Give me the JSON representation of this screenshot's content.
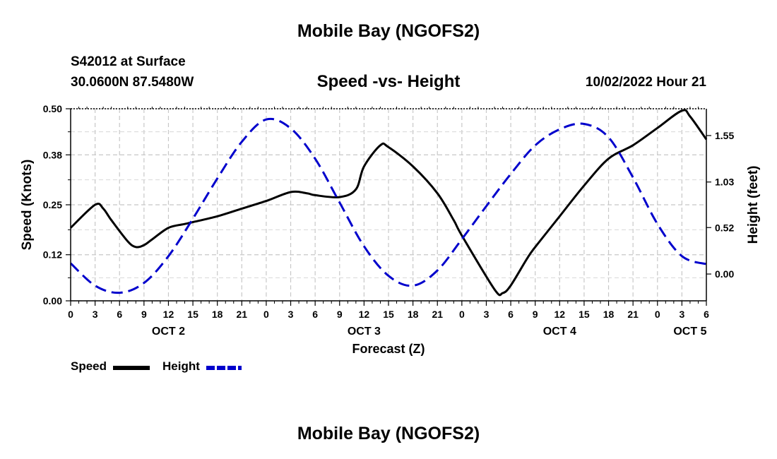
{
  "header": {
    "title": "Mobile Bay (NGOFS2)",
    "station": "S42012 at Surface",
    "coords": "30.0600N  87.5480W",
    "subtitle": "Speed -vs- Height",
    "datetime": "10/02/2022 Hour 21",
    "footer_title": "Mobile Bay (NGOFS2)"
  },
  "legend": {
    "speed_label": "Speed",
    "height_label": "Height",
    "speed_color": "#000000",
    "height_color": "#0000cc"
  },
  "chart_data": {
    "type": "line",
    "title": "Speed -vs- Height",
    "xlabel": "Forecast (Z)",
    "ylabel": "Speed (Knots)",
    "y2label": "Height (feet)",
    "x_unit": "hours from OCT 2 00Z",
    "xlim": [
      0,
      78
    ],
    "ylim": [
      0,
      0.5
    ],
    "y2lim": [
      -0.3,
      1.85
    ],
    "x_ticks": [
      0,
      3,
      6,
      9,
      12,
      15,
      18,
      21,
      24,
      27,
      30,
      33,
      36,
      39,
      42,
      45,
      48,
      51,
      54,
      57,
      60,
      63,
      66,
      69,
      72,
      75,
      78
    ],
    "x_tick_labels": [
      "0",
      "3",
      "6",
      "9",
      "12",
      "15",
      "18",
      "21",
      "0",
      "3",
      "6",
      "9",
      "12",
      "15",
      "18",
      "21",
      "0",
      "3",
      "6",
      "9",
      "12",
      "15",
      "18",
      "21",
      "0",
      "3",
      "6"
    ],
    "day_labels": [
      {
        "x": 12,
        "label": "OCT 2"
      },
      {
        "x": 36,
        "label": "OCT 3"
      },
      {
        "x": 60,
        "label": "OCT 4"
      },
      {
        "x": 76,
        "label": "OCT 5"
      }
    ],
    "y_ticks": [
      0.0,
      0.12,
      0.25,
      0.38,
      0.5
    ],
    "y_tick_labels": [
      "0.00",
      "0.12",
      "0.25",
      "0.38",
      "0.50"
    ],
    "y2_ticks": [
      0.0,
      0.52,
      1.03,
      1.55
    ],
    "y2_tick_labels": [
      "0.00",
      "0.52",
      "1.03",
      "1.55"
    ],
    "grid": true,
    "legend_position": "bottom-left",
    "series": [
      {
        "name": "Speed",
        "axis": "left",
        "color": "#000000",
        "dash": "solid",
        "x": [
          0,
          3,
          4,
          5,
          7,
          8,
          9,
          10,
          12,
          14,
          15,
          18,
          21,
          24,
          27,
          29,
          30,
          33,
          35,
          36,
          38,
          39,
          42,
          45,
          47,
          48,
          52,
          53,
          54,
          56,
          57,
          60,
          63,
          66,
          69,
          72,
          75,
          76,
          78
        ],
        "y": [
          0.19,
          0.25,
          0.24,
          0.21,
          0.155,
          0.14,
          0.145,
          0.16,
          0.19,
          0.2,
          0.205,
          0.22,
          0.24,
          0.26,
          0.283,
          0.28,
          0.275,
          0.27,
          0.29,
          0.35,
          0.405,
          0.4,
          0.35,
          0.28,
          0.21,
          0.17,
          0.03,
          0.02,
          0.04,
          0.11,
          0.14,
          0.22,
          0.3,
          0.37,
          0.405,
          0.45,
          0.495,
          0.48,
          0.42
        ]
      },
      {
        "name": "Height",
        "axis": "right",
        "color": "#0000cc",
        "dash": "dashed",
        "x": [
          0,
          3,
          6,
          9,
          12,
          15,
          18,
          21,
          24,
          27,
          30,
          33,
          36,
          39,
          42,
          45,
          48,
          51,
          54,
          57,
          60,
          63,
          66,
          69,
          72,
          75,
          78
        ],
        "y": [
          0.12,
          -0.13,
          -0.21,
          -0.1,
          0.2,
          0.62,
          1.07,
          1.48,
          1.73,
          1.63,
          1.29,
          0.8,
          0.31,
          -0.02,
          -0.13,
          0.04,
          0.39,
          0.76,
          1.12,
          1.44,
          1.62,
          1.68,
          1.53,
          1.08,
          0.56,
          0.2,
          0.11
        ]
      }
    ]
  }
}
